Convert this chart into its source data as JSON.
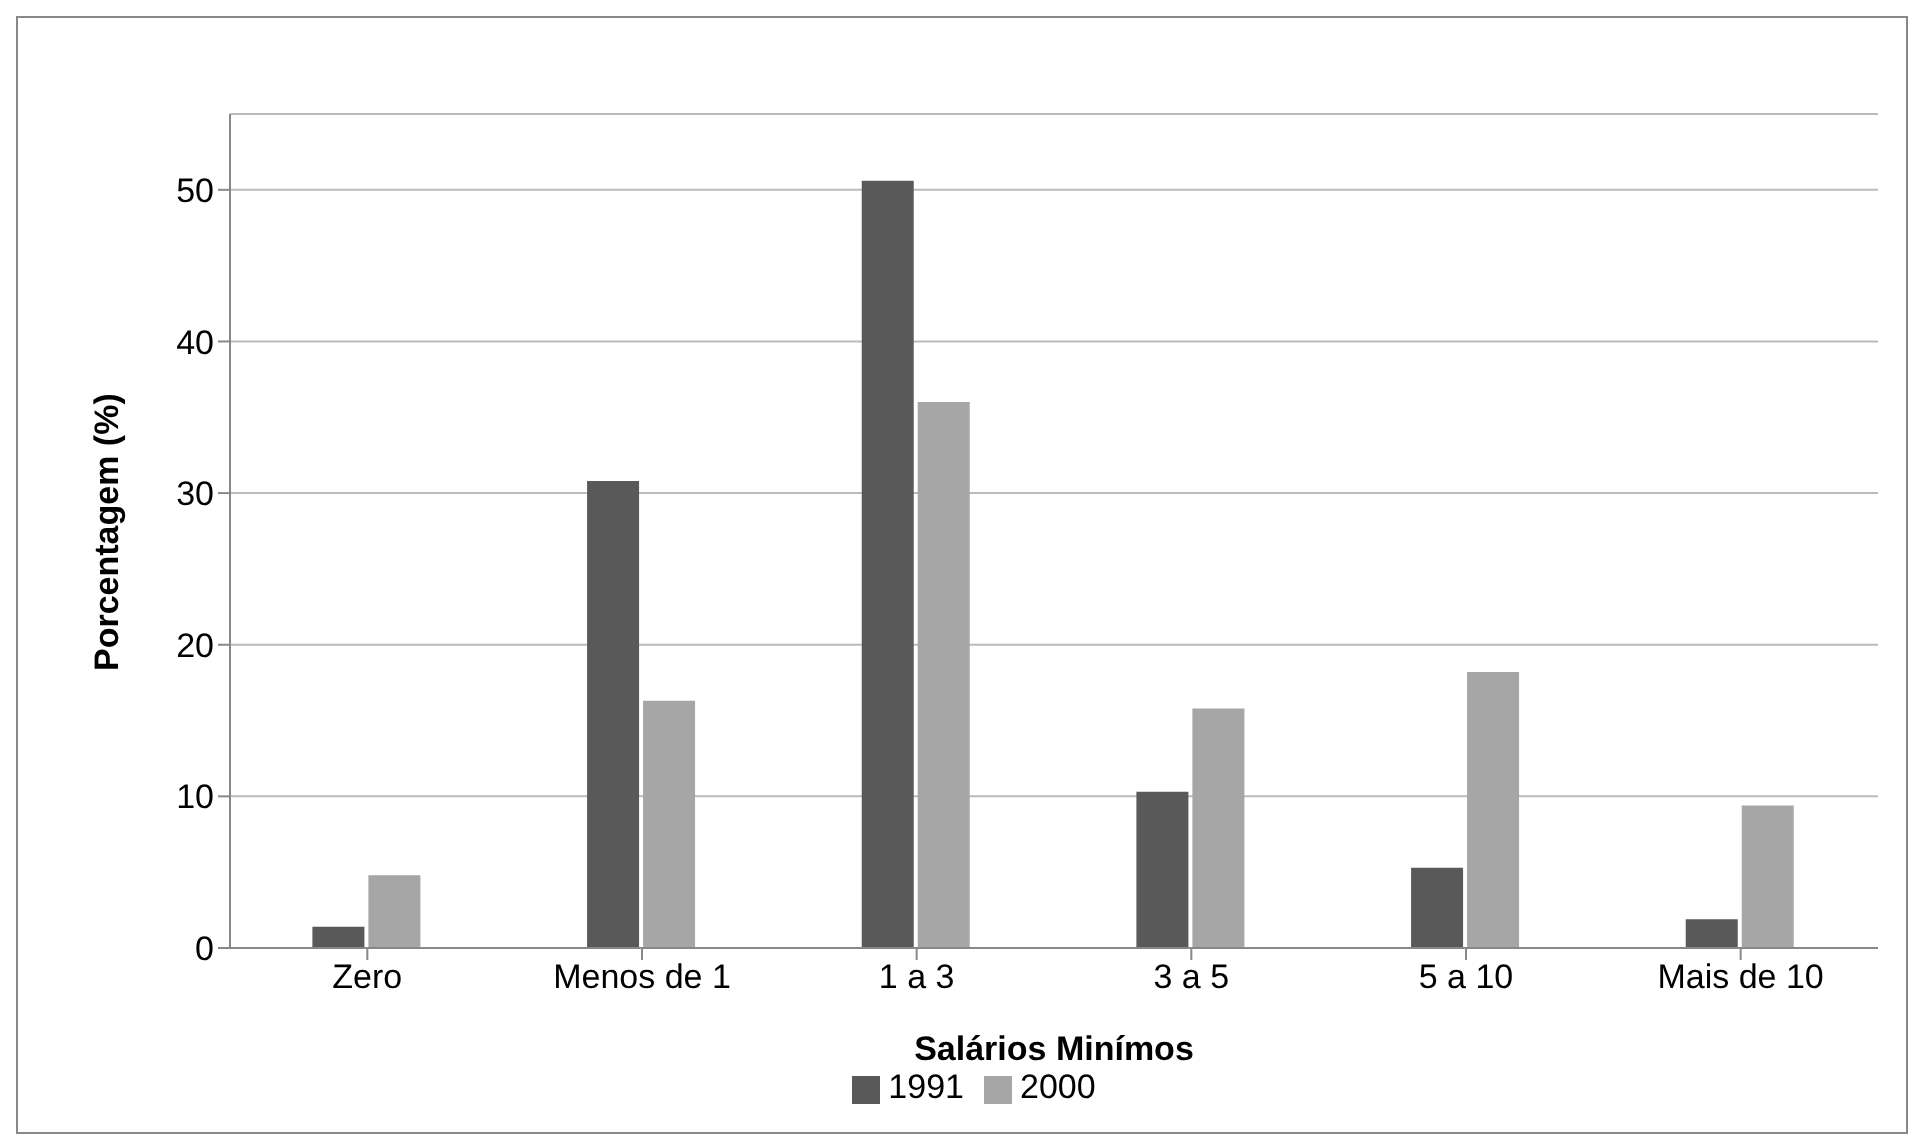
{
  "chart_data": {
    "type": "bar",
    "xlabel": "Salários Minímos",
    "ylabel": "Porcentagem (%)",
    "categories": [
      "Zero",
      "Menos de 1",
      "1 a 3",
      "3 a 5",
      "5 a 10",
      "Mais de 10"
    ],
    "series": [
      {
        "name": "1991",
        "color": "#595959",
        "values": [
          1.4,
          30.8,
          50.6,
          10.3,
          5.3,
          1.9
        ]
      },
      {
        "name": "2000",
        "color": "#a6a6a6",
        "values": [
          4.8,
          16.3,
          36,
          15.8,
          18.2,
          9.4
        ]
      }
    ],
    "ylim": [
      0,
      55
    ],
    "yticks": [
      0,
      10,
      20,
      30,
      40,
      50
    ],
    "grid": "y",
    "legend": "bottom"
  }
}
